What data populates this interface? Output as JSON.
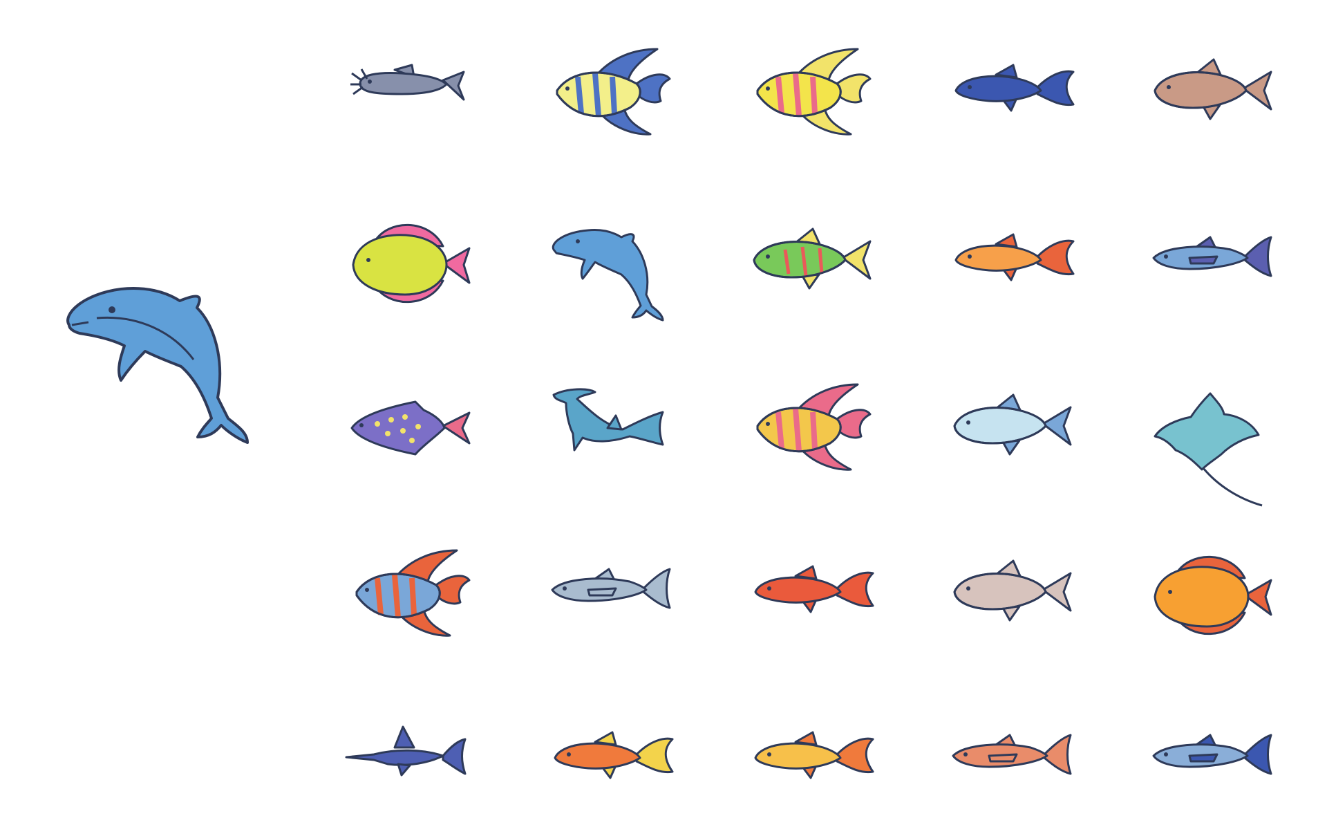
{
  "outline_color": "#2e3a59",
  "hero": {
    "icon": "dolphin-icon",
    "body": "#5f9fd8",
    "belly": "#8cc0ea"
  },
  "rows": [
    [
      {
        "icon": "catfish-icon",
        "shape": "catfish",
        "body": "#8790ab",
        "fin": "#8790ab"
      },
      {
        "icon": "angelfish-blue-yellow-icon",
        "shape": "angel",
        "body": "#f3ef8a",
        "fin": "#4e72c4",
        "stripe": "#4e72c4"
      },
      {
        "icon": "angelfish-rainbow-icon",
        "shape": "angel",
        "body": "#f3e44b",
        "fin": "#f2e36a",
        "stripe": "#ea6b8a"
      },
      {
        "icon": "molly-icon",
        "shape": "slim",
        "body": "#3b57b0",
        "fin": "#3b57b0"
      },
      {
        "icon": "carp-icon",
        "shape": "oval",
        "body": "#c99a86",
        "fin": "#c99a86"
      }
    ],
    [
      {
        "icon": "tang-icon",
        "shape": "disc",
        "body": "#d9e342",
        "fin": "#f06aa0",
        "stripe": "#f06aa0"
      },
      {
        "icon": "dolphin-small-icon",
        "shape": "dolphin",
        "body": "#5f9fd8",
        "fin": "#5f9fd8"
      },
      {
        "icon": "gourami-icon",
        "shape": "oval",
        "body": "#79c95a",
        "fin": "#f2e36a",
        "stripe": "#ea5a5a"
      },
      {
        "icon": "goldfish-orange-icon",
        "shape": "slim",
        "body": "#f7a04a",
        "fin": "#e9643c"
      },
      {
        "icon": "tuna-icon",
        "shape": "torpedo",
        "body": "#7aa7d8",
        "fin": "#5b5fb0"
      }
    ],
    [
      {
        "icon": "flounder-icon",
        "shape": "diamond",
        "body": "#7c6fc7",
        "fin": "#ea6b8a",
        "stripe": "#f2e36a"
      },
      {
        "icon": "hammerhead-shark-icon",
        "shape": "shark",
        "body": "#5aa5c9",
        "fin": "#5aa5c9"
      },
      {
        "icon": "moorish-idol-icon",
        "shape": "angel",
        "body": "#f3c74b",
        "fin": "#ea6b8a",
        "stripe": "#ea6b8a"
      },
      {
        "icon": "herring-icon",
        "shape": "oval",
        "body": "#c6e3f0",
        "fin": "#7aa7d8"
      },
      {
        "icon": "manta-ray-icon",
        "shape": "ray",
        "body": "#78c2cf",
        "fin": "#78c2cf"
      }
    ],
    [
      {
        "icon": "cardinal-fish-icon",
        "shape": "angel",
        "body": "#7aa7d8",
        "fin": "#e9643c",
        "stripe": "#e9643c"
      },
      {
        "icon": "mackerel-icon",
        "shape": "torpedo",
        "body": "#a9bccf",
        "fin": "#a9bccf"
      },
      {
        "icon": "rockfish-icon",
        "shape": "slim",
        "body": "#ea5a3c",
        "fin": "#ea5a3c"
      },
      {
        "icon": "trout-icon",
        "shape": "oval",
        "body": "#d7c3bd",
        "fin": "#d7c3bd"
      },
      {
        "icon": "clownfish-disc-icon",
        "shape": "disc",
        "body": "#f7a032",
        "fin": "#e9643c",
        "stripe": "#e9643c"
      }
    ],
    [
      {
        "icon": "swordfish-icon",
        "shape": "sword",
        "body": "#4e5fb3",
        "fin": "#4e5fb3"
      },
      {
        "icon": "guppy-icon",
        "shape": "slim",
        "body": "#f07a3c",
        "fin": "#f3d34b"
      },
      {
        "icon": "goldfish-icon",
        "shape": "slim",
        "body": "#f7c04a",
        "fin": "#f07a3c"
      },
      {
        "icon": "salmon-icon",
        "shape": "torpedo",
        "body": "#e98c6a",
        "fin": "#e98c6a"
      },
      {
        "icon": "bonito-icon",
        "shape": "torpedo",
        "body": "#8aaed8",
        "fin": "#3b57b0"
      }
    ]
  ]
}
